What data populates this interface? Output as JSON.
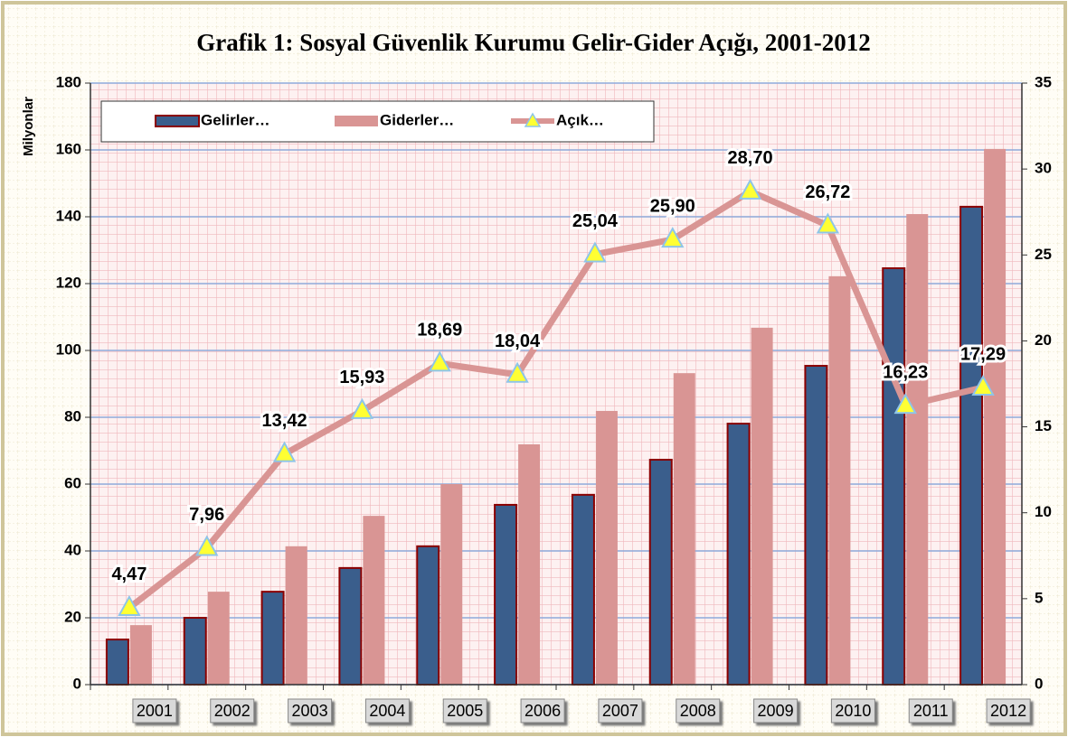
{
  "chart_data": {
    "type": "bar_line",
    "title": "Grafik 1: Sosyal Güvenlik Kurumu Gelir-Gider Açığı, 2001-2012",
    "ylabel": "Milyonlar",
    "categories": [
      "2001",
      "2002",
      "2003",
      "2004",
      "2005",
      "2006",
      "2007",
      "2008",
      "2009",
      "2010",
      "2011",
      "2012"
    ],
    "series": [
      {
        "name": "Gelirler…",
        "type": "bar",
        "color": "#3a5e8c",
        "values": [
          13.5,
          20,
          27.8,
          34.9,
          41.4,
          53.8,
          56.8,
          67.3,
          78.1,
          95.4,
          124.6,
          143
        ]
      },
      {
        "name": "Giderler…",
        "type": "bar",
        "color": "#d99594",
        "values": [
          17.8,
          27.8,
          41.4,
          50.5,
          60,
          71.9,
          81.9,
          93.2,
          106.8,
          122.2,
          140.8,
          160.3
        ]
      },
      {
        "name": "Açık…",
        "type": "line",
        "axis": "y2",
        "color": "#d99594",
        "marker_color": "#ffff33",
        "values": [
          4.47,
          7.96,
          13.42,
          15.93,
          18.69,
          18.04,
          25.04,
          25.9,
          28.7,
          26.72,
          16.23,
          17.29
        ],
        "value_labels": [
          "4,47",
          "7,96",
          "13,42",
          "15,93",
          "18,69",
          "18,04",
          "25,04",
          "25,90",
          "28,70",
          "26,72",
          "16,23",
          "17,29"
        ]
      }
    ],
    "ylim": [
      0,
      180
    ],
    "yticks": [
      0,
      20,
      40,
      60,
      80,
      100,
      120,
      140,
      160,
      180
    ],
    "y2lim": [
      0,
      35
    ],
    "y2ticks": [
      0,
      5,
      10,
      15,
      20,
      25,
      30,
      35
    ],
    "grid": true,
    "legend": "top-left"
  }
}
